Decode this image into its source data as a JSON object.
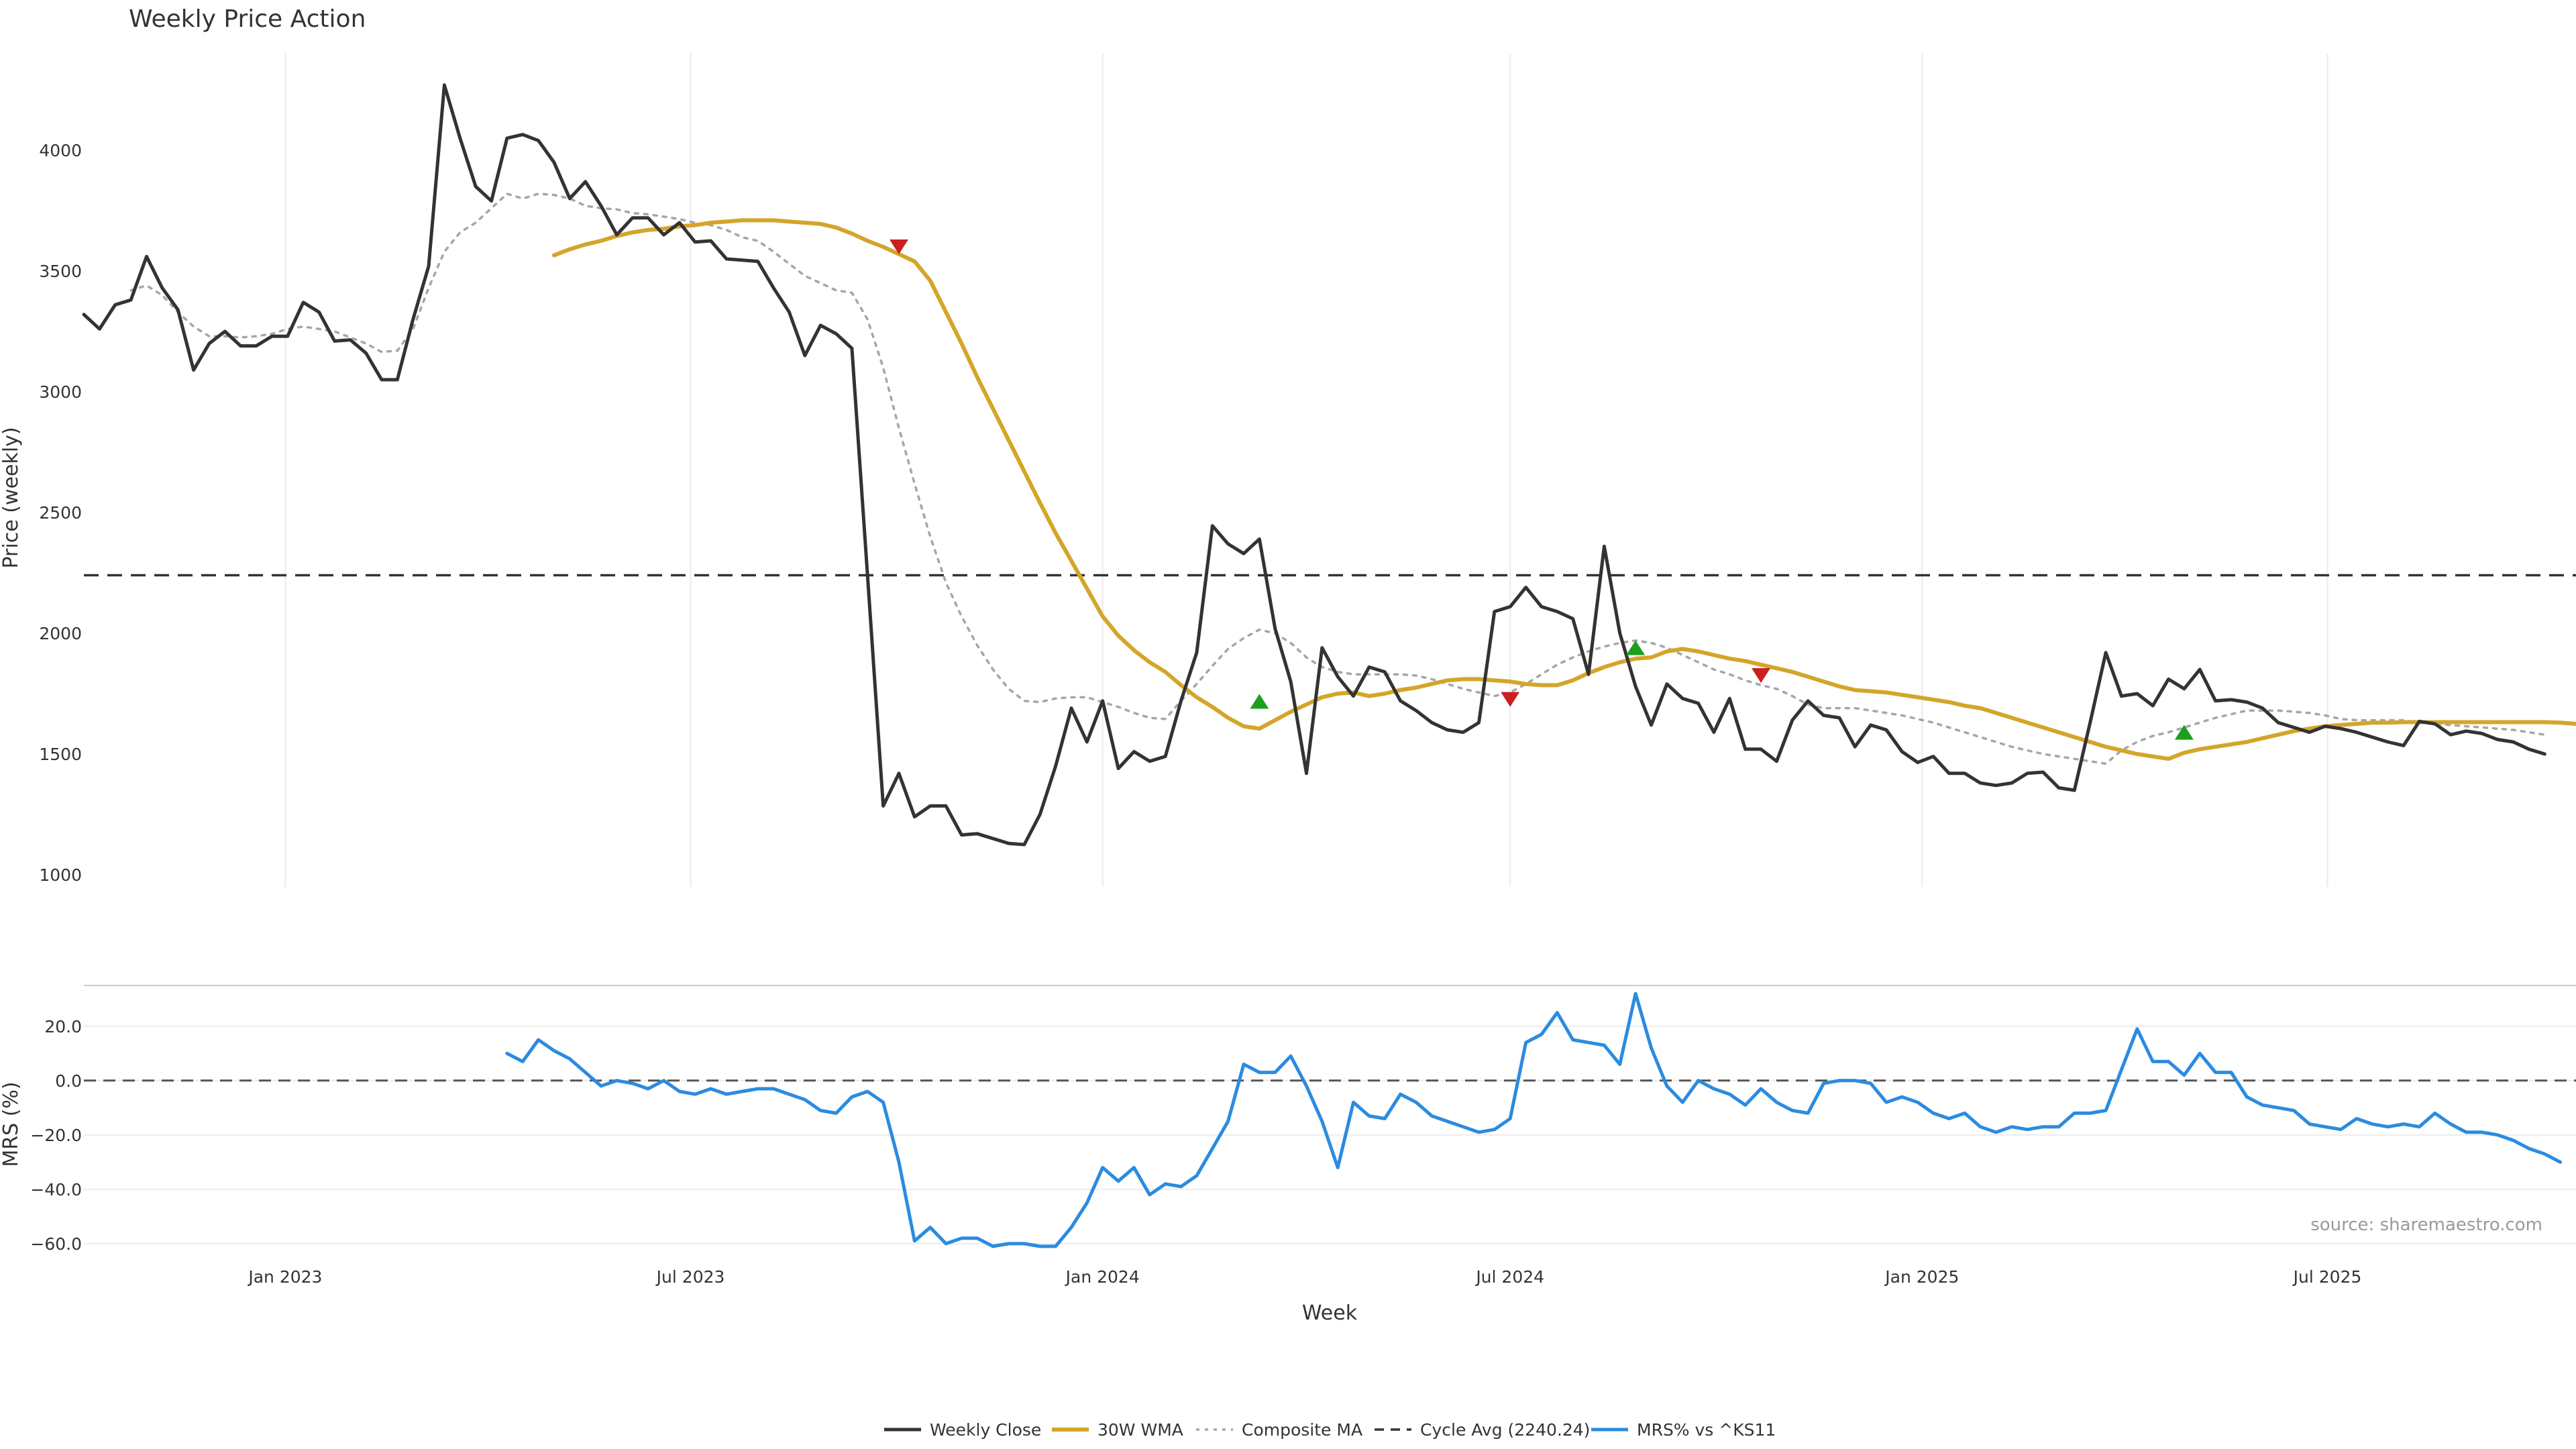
{
  "chart_data": {
    "type": "line",
    "title": "Weekly Price Action",
    "source": "source: sharemaestro.com",
    "xlabel": "Week",
    "x_ticks": [
      "Jan 2023",
      "Jul 2023",
      "Jan 2024",
      "Jul 2024",
      "Jan 2025",
      "Jul 2025"
    ],
    "x_ticks_dates": [
      "2023-01-01",
      "2023-07-01",
      "2024-01-01",
      "2024-07-01",
      "2025-01-01",
      "2025-07-01"
    ],
    "x_range": [
      "2022-10-03",
      "2025-10-20"
    ],
    "price_panel": {
      "ylabel": "Price (weekly)",
      "ylim": [
        950,
        4400
      ],
      "yticks": [
        "1000",
        "1500",
        "2000",
        "2500",
        "3000",
        "3500",
        "4000"
      ],
      "grid": "vertical",
      "cycle_avg": 2240.24
    },
    "mrs_panel": {
      "ylabel": "MRS (%)",
      "ylim": [
        -62,
        35
      ],
      "yticks": [
        "−60.0",
        "−40.0",
        "−20.0",
        "0.0",
        "20.0"
      ],
      "zero_line": 0,
      "grid": "horizontal"
    },
    "series": [
      {
        "name": "Weekly Close",
        "color": "#333333",
        "panel": "price",
        "x_start": "2022-10-03",
        "step_weeks": 1,
        "values": [
          3320,
          3260,
          3360,
          3380,
          3560,
          3430,
          3340,
          3090,
          3200,
          3250,
          3190,
          3190,
          3230,
          3230,
          3370,
          3330,
          3210,
          3215,
          3160,
          3050,
          3050,
          3300,
          3520,
          4270,
          4050,
          3850,
          3790,
          4050,
          4065,
          4040,
          3950,
          3800,
          3870,
          3770,
          3650,
          3720,
          3720,
          3650,
          3700,
          3620,
          3625,
          3550,
          3545,
          3540,
          3430,
          3330,
          3150,
          3275,
          3240,
          3180,
          2240,
          1285,
          1420,
          1240,
          1285,
          1285,
          1165,
          1170,
          1150,
          1130,
          1125,
          1250,
          1450,
          1690,
          1550,
          1720,
          1440,
          1510,
          1470,
          1490,
          1720,
          1920,
          2445,
          2370,
          2330,
          2390,
          2020,
          1800,
          1420,
          1940,
          1820,
          1740,
          1860,
          1840,
          1720,
          1680,
          1630,
          1600,
          1590,
          1630,
          2090,
          2110,
          2190,
          2110,
          2090,
          2060,
          1830,
          2360,
          2000,
          1780,
          1620,
          1790,
          1730,
          1710,
          1590,
          1730,
          1520,
          1520,
          1470,
          1640,
          1720,
          1660,
          1650,
          1530,
          1620,
          1600,
          1510,
          1465,
          1490,
          1420,
          1420,
          1380,
          1370,
          1380,
          1420,
          1425,
          1360,
          1350,
          1630,
          1920,
          1740,
          1750,
          1700,
          1810,
          1770,
          1850,
          1720,
          1725,
          1715,
          1690,
          1630,
          1610,
          1590,
          1615,
          1605,
          1590,
          1570,
          1550,
          1535,
          1635,
          1625,
          1580,
          1595,
          1585,
          1560,
          1550,
          1520,
          1500
        ]
      },
      {
        "name": "30W WMA",
        "color": "#d4a52a",
        "panel": "price",
        "x_start": "2023-05-01",
        "step_weeks": 1,
        "values": [
          3565,
          3590,
          3610,
          3625,
          3645,
          3660,
          3670,
          3675,
          3685,
          3690,
          3700,
          3705,
          3710,
          3710,
          3710,
          3705,
          3700,
          3695,
          3680,
          3655,
          3625,
          3600,
          3570,
          3540,
          3460,
          3330,
          3200,
          3060,
          2930,
          2800,
          2670,
          2540,
          2415,
          2300,
          2185,
          2070,
          1990,
          1930,
          1880,
          1840,
          1785,
          1735,
          1695,
          1650,
          1615,
          1605,
          1640,
          1675,
          1705,
          1735,
          1750,
          1755,
          1740,
          1750,
          1765,
          1775,
          1790,
          1805,
          1810,
          1810,
          1805,
          1800,
          1790,
          1785,
          1785,
          1805,
          1835,
          1860,
          1880,
          1895,
          1900,
          1925,
          1935,
          1925,
          1910,
          1895,
          1885,
          1870,
          1855,
          1840,
          1820,
          1800,
          1780,
          1765,
          1760,
          1755,
          1745,
          1735,
          1725,
          1715,
          1700,
          1690,
          1670,
          1650,
          1630,
          1610,
          1590,
          1570,
          1550,
          1530,
          1515,
          1500,
          1490,
          1480,
          1505,
          1520,
          1530,
          1540,
          1550,
          1565,
          1580,
          1595,
          1605,
          1615,
          1620,
          1625,
          1630,
          1630,
          1632,
          1632,
          1632,
          1632,
          1632,
          1632,
          1632,
          1632,
          1632,
          1632,
          1630,
          1625,
          1615
        ]
      },
      {
        "name": "Composite MA",
        "color": "#a6a6a6",
        "panel": "price",
        "x_start": "2022-10-24",
        "step_weeks": 1,
        "values": [
          3420,
          3440,
          3400,
          3330,
          3270,
          3230,
          3230,
          3225,
          3230,
          3240,
          3260,
          3270,
          3260,
          3250,
          3225,
          3200,
          3165,
          3170,
          3260,
          3430,
          3580,
          3660,
          3700,
          3760,
          3820,
          3800,
          3820,
          3815,
          3800,
          3770,
          3760,
          3755,
          3740,
          3735,
          3725,
          3715,
          3700,
          3690,
          3670,
          3640,
          3625,
          3580,
          3530,
          3480,
          3450,
          3420,
          3410,
          3300,
          3100,
          2850,
          2620,
          2400,
          2210,
          2070,
          1950,
          1850,
          1770,
          1720,
          1715,
          1730,
          1735,
          1735,
          1715,
          1695,
          1670,
          1650,
          1645,
          1720,
          1790,
          1865,
          1935,
          1980,
          2015,
          2000,
          1960,
          1900,
          1860,
          1840,
          1830,
          1830,
          1830,
          1830,
          1825,
          1810,
          1790,
          1770,
          1755,
          1740,
          1755,
          1790,
          1830,
          1870,
          1900,
          1925,
          1945,
          1960,
          1970,
          1960,
          1940,
          1910,
          1880,
          1850,
          1830,
          1805,
          1785,
          1770,
          1740,
          1705,
          1690,
          1690,
          1690,
          1680,
          1670,
          1660,
          1645,
          1630,
          1610,
          1590,
          1570,
          1550,
          1530,
          1515,
          1500,
          1490,
          1480,
          1470,
          1460,
          1515,
          1550,
          1575,
          1590,
          1610,
          1630,
          1650,
          1665,
          1680,
          1680,
          1680,
          1675,
          1670,
          1660,
          1645,
          1640,
          1640,
          1640,
          1640,
          1630,
          1625,
          1620,
          1615,
          1610,
          1605,
          1600,
          1590,
          1580
        ]
      },
      {
        "name": "Cycle Avg (2240.24)",
        "color": "#333333",
        "panel": "price",
        "type": "hline",
        "value": 2240.24
      },
      {
        "name": "MRS% vs ^KS11",
        "color": "#2b8be0",
        "panel": "mrs",
        "x_start": "2023-04-10",
        "step_weeks": 1,
        "values": [
          10,
          7,
          15,
          11,
          8,
          3,
          -2,
          0,
          -1,
          -3,
          0,
          -4,
          -5,
          -3,
          -5,
          -4,
          -3,
          -3,
          -5,
          -7,
          -11,
          -12,
          -6,
          -4,
          -8,
          -30,
          -59,
          -54,
          -60,
          -58,
          -58,
          -61,
          -60,
          -60,
          -61,
          -61,
          -54,
          -45,
          -32,
          -37,
          -32,
          -42,
          -38,
          -39,
          -35,
          -25,
          -15,
          6,
          3,
          3,
          9,
          -2,
          -15,
          -32,
          -8,
          -13,
          -14,
          -5,
          -8,
          -13,
          -15,
          -17,
          -19,
          -18,
          -14,
          14,
          17,
          25,
          15,
          14,
          13,
          6,
          32,
          12,
          -2,
          -8,
          0,
          -3,
          -5,
          -9,
          -3,
          -8,
          -11,
          -12,
          -1,
          0,
          0,
          -1,
          -8,
          -6,
          -8,
          -12,
          -14,
          -12,
          -17,
          -19,
          -17,
          -18,
          -17,
          -17,
          -12,
          -12,
          -11,
          4,
          19,
          7,
          7,
          2,
          10,
          3,
          3,
          -6,
          -9,
          -10,
          -11,
          -16,
          -17,
          -18,
          -14,
          -16,
          -17,
          -16,
          -17,
          -12,
          -16,
          -19,
          -19,
          -20,
          -22,
          -25,
          -27,
          -30
        ]
      }
    ],
    "markers": [
      {
        "type": "sell",
        "color": "#cc1f1f",
        "date": "2023-10-02",
        "value": 3600
      },
      {
        "type": "buy",
        "color": "#1e9e1e",
        "date": "2024-03-11",
        "value": 1718
      },
      {
        "type": "sell",
        "color": "#cc1f1f",
        "date": "2024-07-01",
        "value": 1726
      },
      {
        "type": "buy",
        "color": "#1e9e1e",
        "date": "2024-08-26",
        "value": 1940
      },
      {
        "type": "sell",
        "color": "#cc1f1f",
        "date": "2024-10-21",
        "value": 1825
      },
      {
        "type": "buy",
        "color": "#1e9e1e",
        "date": "2025-04-28",
        "value": 1590
      }
    ],
    "legend_position": "bottom-center"
  }
}
